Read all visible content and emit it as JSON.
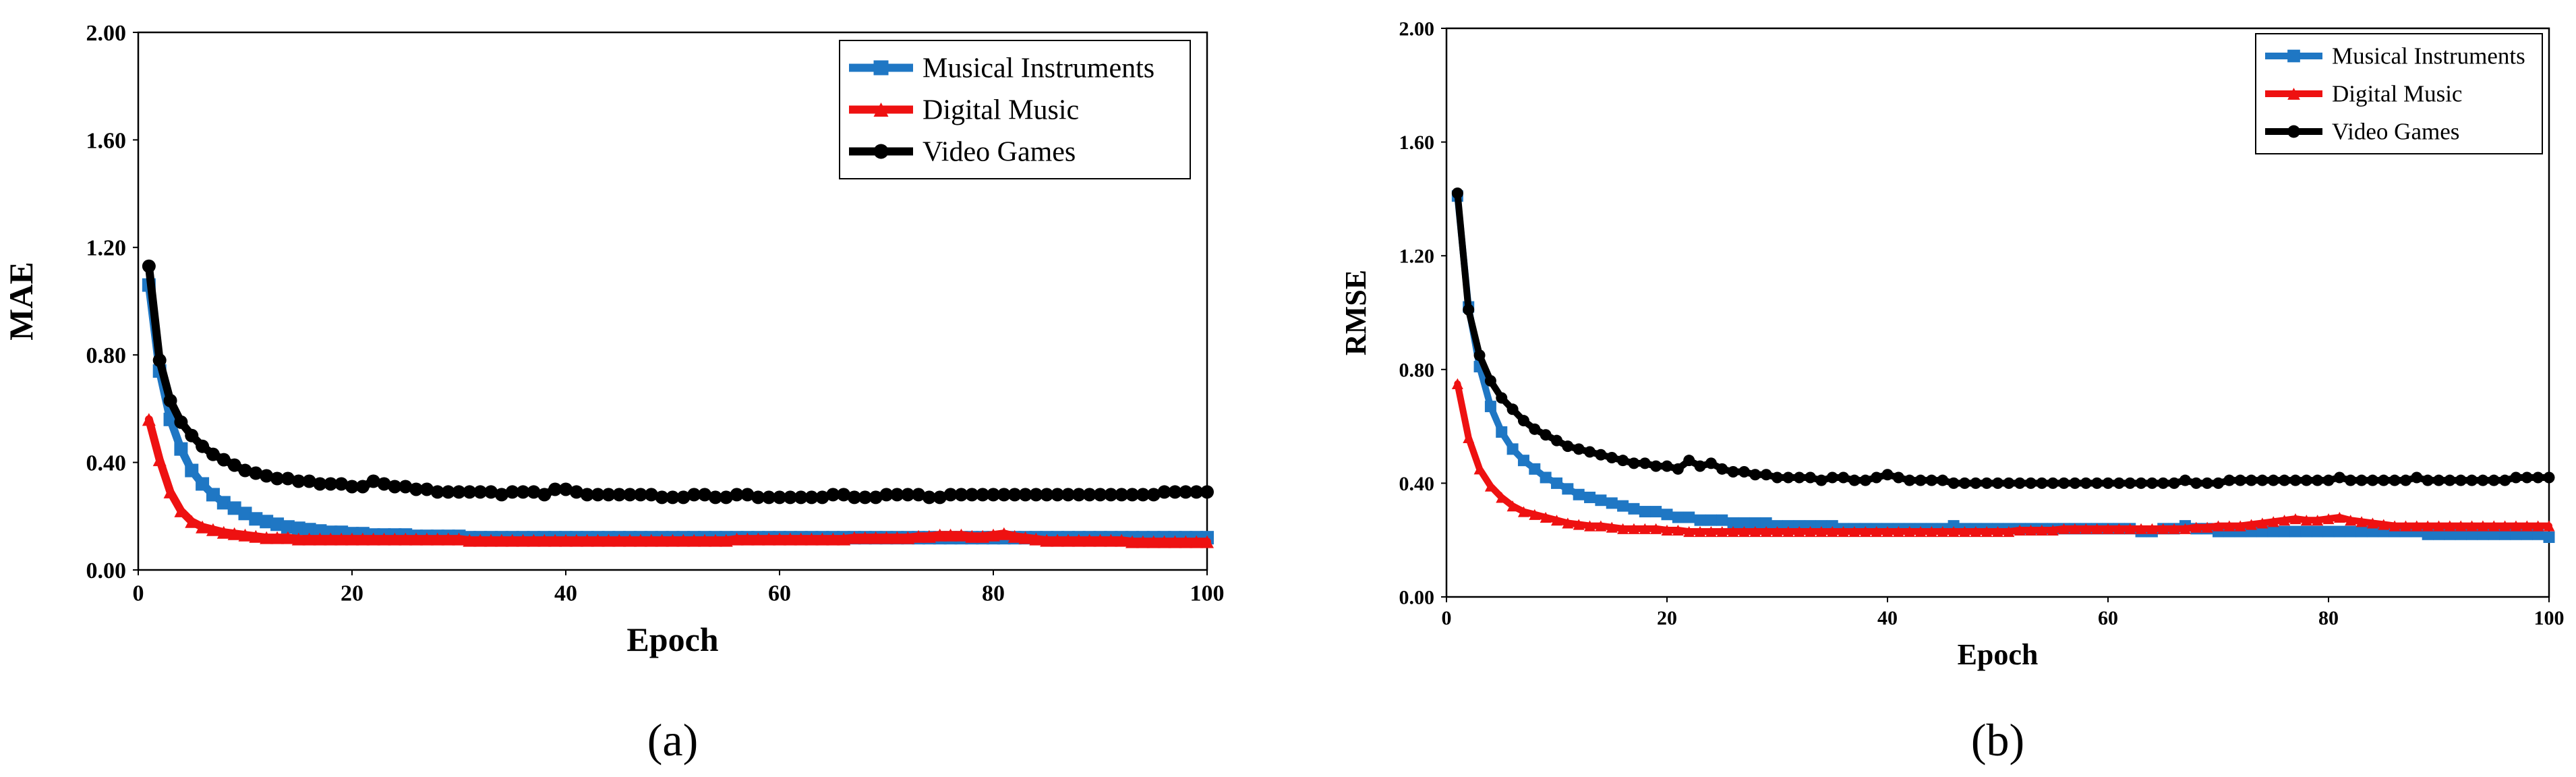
{
  "colors": {
    "musical_instruments": "#1f77c4",
    "digital_music": "#ee1111",
    "video_games": "#000000"
  },
  "chart_data": [
    {
      "type": "line",
      "panel_label": "(a)",
      "panel_letter": "a",
      "ylabel": "MAE",
      "xlabel": "Epoch",
      "xlim": [
        0,
        100
      ],
      "ylim": [
        0,
        2
      ],
      "xticks": [
        0,
        20,
        40,
        60,
        80,
        100
      ],
      "yticks": [
        0,
        0.4,
        0.8,
        1.2,
        1.6,
        2.0
      ],
      "ytick_labels": [
        "0.00",
        "0.40",
        "0.80",
        "1.20",
        "1.60",
        "2.00"
      ],
      "legend_position": "top-right",
      "series": [
        {
          "name": "Musical Instruments",
          "color_key": "musical_instruments",
          "marker": "square",
          "x_start": 1,
          "x_step": 1,
          "values": [
            1.06,
            0.74,
            0.56,
            0.45,
            0.37,
            0.32,
            0.28,
            0.25,
            0.23,
            0.21,
            0.19,
            0.18,
            0.17,
            0.16,
            0.155,
            0.15,
            0.145,
            0.14,
            0.14,
            0.135,
            0.135,
            0.13,
            0.13,
            0.13,
            0.13,
            0.125,
            0.125,
            0.125,
            0.125,
            0.125,
            0.12,
            0.12,
            0.12,
            0.12,
            0.12,
            0.12,
            0.12,
            0.12,
            0.12,
            0.12,
            0.12,
            0.12,
            0.12,
            0.12,
            0.12,
            0.12,
            0.12,
            0.12,
            0.12,
            0.12,
            0.12,
            0.12,
            0.12,
            0.12,
            0.12,
            0.12,
            0.12,
            0.12,
            0.12,
            0.12,
            0.12,
            0.12,
            0.12,
            0.12,
            0.12,
            0.12,
            0.12,
            0.12,
            0.12,
            0.12,
            0.12,
            0.12,
            0.12,
            0.12,
            0.12,
            0.12,
            0.12,
            0.12,
            0.12,
            0.12,
            0.12,
            0.12,
            0.12,
            0.12,
            0.12,
            0.12,
            0.12,
            0.12,
            0.12,
            0.12,
            0.12,
            0.12,
            0.12,
            0.12,
            0.12,
            0.12,
            0.12,
            0.12,
            0.12,
            0.12
          ]
        },
        {
          "name": "Digital Music",
          "color_key": "digital_music",
          "marker": "triangle",
          "x_start": 1,
          "x_step": 1,
          "values": [
            0.56,
            0.41,
            0.29,
            0.22,
            0.18,
            0.16,
            0.15,
            0.14,
            0.135,
            0.13,
            0.125,
            0.12,
            0.12,
            0.12,
            0.115,
            0.115,
            0.115,
            0.115,
            0.115,
            0.115,
            0.115,
            0.115,
            0.115,
            0.115,
            0.115,
            0.115,
            0.115,
            0.115,
            0.115,
            0.115,
            0.11,
            0.11,
            0.11,
            0.11,
            0.11,
            0.11,
            0.11,
            0.11,
            0.11,
            0.11,
            0.11,
            0.11,
            0.11,
            0.11,
            0.11,
            0.11,
            0.11,
            0.11,
            0.11,
            0.11,
            0.11,
            0.11,
            0.11,
            0.11,
            0.11,
            0.115,
            0.115,
            0.115,
            0.115,
            0.115,
            0.115,
            0.115,
            0.115,
            0.115,
            0.115,
            0.115,
            0.12,
            0.12,
            0.12,
            0.12,
            0.12,
            0.12,
            0.125,
            0.125,
            0.13,
            0.13,
            0.13,
            0.125,
            0.125,
            0.13,
            0.135,
            0.125,
            0.12,
            0.115,
            0.11,
            0.11,
            0.11,
            0.11,
            0.11,
            0.11,
            0.11,
            0.11,
            0.105,
            0.105,
            0.105,
            0.105,
            0.105,
            0.105,
            0.105,
            0.105
          ]
        },
        {
          "name": "Video Games",
          "color_key": "video_games",
          "marker": "circle",
          "x_start": 1,
          "x_step": 1,
          "values": [
            1.13,
            0.78,
            0.63,
            0.55,
            0.5,
            0.46,
            0.43,
            0.41,
            0.39,
            0.37,
            0.36,
            0.35,
            0.34,
            0.34,
            0.33,
            0.33,
            0.32,
            0.32,
            0.32,
            0.31,
            0.31,
            0.33,
            0.32,
            0.31,
            0.31,
            0.3,
            0.3,
            0.29,
            0.29,
            0.29,
            0.29,
            0.29,
            0.29,
            0.28,
            0.29,
            0.29,
            0.29,
            0.28,
            0.3,
            0.3,
            0.29,
            0.28,
            0.28,
            0.28,
            0.28,
            0.28,
            0.28,
            0.28,
            0.27,
            0.27,
            0.27,
            0.28,
            0.28,
            0.27,
            0.27,
            0.28,
            0.28,
            0.27,
            0.27,
            0.27,
            0.27,
            0.27,
            0.27,
            0.27,
            0.28,
            0.28,
            0.27,
            0.27,
            0.27,
            0.28,
            0.28,
            0.28,
            0.28,
            0.27,
            0.27,
            0.28,
            0.28,
            0.28,
            0.28,
            0.28,
            0.28,
            0.28,
            0.28,
            0.28,
            0.28,
            0.28,
            0.28,
            0.28,
            0.28,
            0.28,
            0.28,
            0.28,
            0.28,
            0.28,
            0.28,
            0.29,
            0.29,
            0.29,
            0.29,
            0.29
          ]
        }
      ]
    },
    {
      "type": "line",
      "panel_label": "(b)",
      "panel_letter": "b",
      "ylabel": "RMSE",
      "xlabel": "Epoch",
      "xlim": [
        0,
        100
      ],
      "ylim": [
        0,
        2
      ],
      "xticks": [
        0,
        20,
        40,
        60,
        80,
        100
      ],
      "yticks": [
        0,
        0.4,
        0.8,
        1.2,
        1.6,
        2.0
      ],
      "ytick_labels": [
        "0.00",
        "0.40",
        "0.80",
        "1.20",
        "1.60",
        "2.00"
      ],
      "legend_position": "top-right",
      "series": [
        {
          "name": "Musical Instruments",
          "color_key": "musical_instruments",
          "marker": "square",
          "x_start": 1,
          "x_step": 1,
          "values": [
            1.41,
            1.02,
            0.81,
            0.67,
            0.58,
            0.52,
            0.48,
            0.45,
            0.42,
            0.4,
            0.38,
            0.36,
            0.35,
            0.34,
            0.33,
            0.32,
            0.31,
            0.3,
            0.3,
            0.29,
            0.28,
            0.28,
            0.27,
            0.27,
            0.27,
            0.26,
            0.26,
            0.26,
            0.26,
            0.25,
            0.25,
            0.25,
            0.25,
            0.25,
            0.25,
            0.24,
            0.24,
            0.24,
            0.24,
            0.24,
            0.24,
            0.24,
            0.24,
            0.24,
            0.24,
            0.25,
            0.24,
            0.24,
            0.24,
            0.24,
            0.24,
            0.24,
            0.24,
            0.24,
            0.24,
            0.24,
            0.24,
            0.24,
            0.24,
            0.24,
            0.24,
            0.24,
            0.23,
            0.23,
            0.24,
            0.24,
            0.25,
            0.24,
            0.24,
            0.23,
            0.23,
            0.23,
            0.23,
            0.23,
            0.23,
            0.23,
            0.23,
            0.23,
            0.23,
            0.23,
            0.23,
            0.23,
            0.23,
            0.23,
            0.23,
            0.23,
            0.23,
            0.23,
            0.22,
            0.22,
            0.22,
            0.22,
            0.22,
            0.22,
            0.22,
            0.22,
            0.22,
            0.22,
            0.22,
            0.21
          ]
        },
        {
          "name": "Digital Music",
          "color_key": "digital_music",
          "marker": "triangle",
          "x_start": 1,
          "x_step": 1,
          "values": [
            0.75,
            0.56,
            0.45,
            0.39,
            0.35,
            0.32,
            0.3,
            0.29,
            0.28,
            0.27,
            0.26,
            0.255,
            0.25,
            0.25,
            0.245,
            0.24,
            0.24,
            0.24,
            0.24,
            0.235,
            0.235,
            0.23,
            0.23,
            0.23,
            0.23,
            0.23,
            0.23,
            0.23,
            0.23,
            0.23,
            0.23,
            0.23,
            0.23,
            0.23,
            0.23,
            0.23,
            0.23,
            0.23,
            0.23,
            0.23,
            0.23,
            0.23,
            0.23,
            0.23,
            0.23,
            0.23,
            0.23,
            0.23,
            0.23,
            0.23,
            0.23,
            0.235,
            0.235,
            0.235,
            0.235,
            0.24,
            0.24,
            0.24,
            0.24,
            0.24,
            0.24,
            0.24,
            0.24,
            0.24,
            0.24,
            0.24,
            0.24,
            0.245,
            0.245,
            0.25,
            0.25,
            0.25,
            0.255,
            0.26,
            0.265,
            0.27,
            0.275,
            0.27,
            0.27,
            0.275,
            0.28,
            0.27,
            0.265,
            0.26,
            0.255,
            0.25,
            0.25,
            0.25,
            0.25,
            0.25,
            0.25,
            0.25,
            0.25,
            0.25,
            0.25,
            0.25,
            0.25,
            0.25,
            0.25,
            0.25
          ]
        },
        {
          "name": "Video Games",
          "color_key": "video_games",
          "marker": "circle",
          "x_start": 1,
          "x_step": 1,
          "values": [
            1.42,
            1.01,
            0.85,
            0.76,
            0.7,
            0.66,
            0.62,
            0.59,
            0.57,
            0.55,
            0.53,
            0.52,
            0.51,
            0.5,
            0.49,
            0.48,
            0.47,
            0.47,
            0.46,
            0.46,
            0.45,
            0.48,
            0.46,
            0.47,
            0.45,
            0.44,
            0.44,
            0.43,
            0.43,
            0.42,
            0.42,
            0.42,
            0.42,
            0.41,
            0.42,
            0.42,
            0.41,
            0.41,
            0.42,
            0.43,
            0.42,
            0.41,
            0.41,
            0.41,
            0.41,
            0.4,
            0.4,
            0.4,
            0.4,
            0.4,
            0.4,
            0.4,
            0.4,
            0.4,
            0.4,
            0.4,
            0.4,
            0.4,
            0.4,
            0.4,
            0.4,
            0.4,
            0.4,
            0.4,
            0.4,
            0.4,
            0.41,
            0.4,
            0.4,
            0.4,
            0.41,
            0.41,
            0.41,
            0.41,
            0.41,
            0.41,
            0.41,
            0.41,
            0.41,
            0.41,
            0.42,
            0.41,
            0.41,
            0.41,
            0.41,
            0.41,
            0.41,
            0.42,
            0.41,
            0.41,
            0.41,
            0.41,
            0.41,
            0.41,
            0.41,
            0.41,
            0.42,
            0.42,
            0.42,
            0.42
          ]
        }
      ]
    }
  ]
}
